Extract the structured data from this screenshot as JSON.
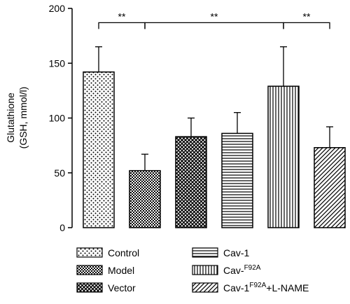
{
  "chart_data": {
    "type": "bar",
    "ylabel_line1": "Glutathione",
    "ylabel_line2": "(GSH, mmol/l)",
    "ylim": [
      0,
      200
    ],
    "yticks": [
      0,
      50,
      100,
      150,
      200
    ],
    "grid": false,
    "legend_position": "bottom",
    "categories": [
      {
        "name": "Control",
        "name_html": "Control",
        "value": 142,
        "error": 23,
        "pattern": "dots"
      },
      {
        "name": "Model",
        "name_html": "Model",
        "value": 52,
        "error": 15,
        "pattern": "crosshatch"
      },
      {
        "name": "Vector",
        "name_html": "Vector",
        "value": 83,
        "error": 17,
        "pattern": "diamond"
      },
      {
        "name": "Cav-1",
        "name_html": "Cav-1",
        "value": 86,
        "error": 19,
        "pattern": "horizontal"
      },
      {
        "name": "Cav-F92A",
        "name_html": "Cav-<sup>F92A</sup>",
        "value": 129,
        "error": 36,
        "pattern": "vertical"
      },
      {
        "name": "Cav-1F92A+L-NAME",
        "name_html": "Cav-1<sup>F92A</sup>+L-NAME",
        "value": 73,
        "error": 19,
        "pattern": "diagonal"
      }
    ],
    "significance": [
      {
        "from": 0,
        "to": 1,
        "label": "**",
        "y": 187
      },
      {
        "from": 1,
        "to": 4,
        "label": "**",
        "y": 187
      },
      {
        "from": 4,
        "to": 5,
        "label": "**",
        "y": 187
      }
    ]
  }
}
